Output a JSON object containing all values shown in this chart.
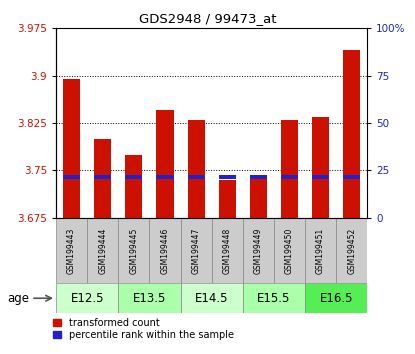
{
  "title": "GDS2948 / 99473_at",
  "samples": [
    "GSM199443",
    "GSM199444",
    "GSM199445",
    "GSM199446",
    "GSM199447",
    "GSM199448",
    "GSM199449",
    "GSM199450",
    "GSM199451",
    "GSM199452"
  ],
  "transformed_counts": [
    3.895,
    3.8,
    3.775,
    3.845,
    3.83,
    3.735,
    3.74,
    3.83,
    3.835,
    3.94
  ],
  "bar_bottom": 3.675,
  "ylim_left": [
    3.675,
    3.975
  ],
  "ylim_right": [
    0,
    100
  ],
  "yticks_left": [
    3.675,
    3.75,
    3.825,
    3.9,
    3.975
  ],
  "yticks_right": [
    0,
    25,
    50,
    75,
    100
  ],
  "bar_color_red": "#cc1100",
  "bar_color_blue": "#2222cc",
  "age_groups": [
    {
      "label": "E12.5",
      "samples": [
        0,
        1
      ],
      "color": "#ccffcc"
    },
    {
      "label": "E13.5",
      "samples": [
        2,
        3
      ],
      "color": "#aaffaa"
    },
    {
      "label": "E14.5",
      "samples": [
        4,
        5
      ],
      "color": "#ccffcc"
    },
    {
      "label": "E15.5",
      "samples": [
        6,
        7
      ],
      "color": "#aaffaa"
    },
    {
      "label": "E16.5",
      "samples": [
        8,
        9
      ],
      "color": "#55ee55"
    }
  ],
  "legend_red_label": "transformed count",
  "legend_blue_label": "percentile rank within the sample",
  "xlabel_age": "age",
  "tick_label_fontsize": 7.5,
  "bar_width": 0.55,
  "blue_bar_height": 0.005,
  "blue_bar_value": 3.737,
  "grid_lines": [
    3.75,
    3.825,
    3.9
  ],
  "sample_name_fontsize": 5.5,
  "age_label_fontsize": 8.5
}
